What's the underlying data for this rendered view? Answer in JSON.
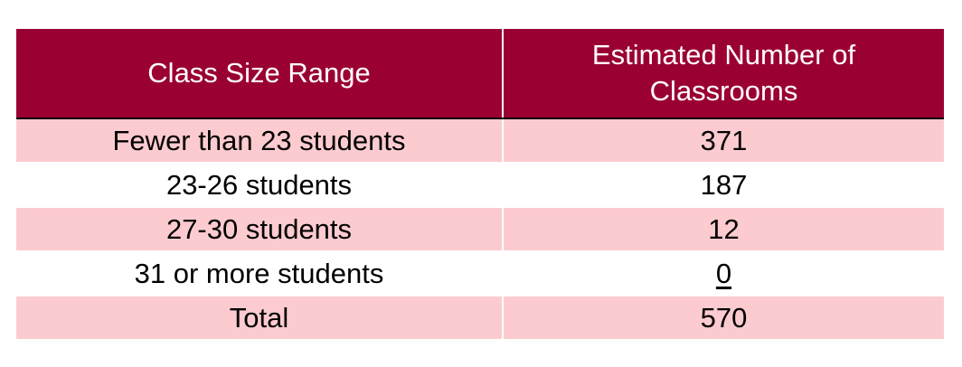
{
  "colors": {
    "header_bg": "#9b0033",
    "header_text": "#ffffff",
    "band_bg": "#fccbcf",
    "plain_bg": "#ffffff"
  },
  "table": {
    "headers": [
      "Class Size Range",
      "Estimated Number of Classrooms"
    ],
    "rows": [
      {
        "range": "Fewer than 23 students",
        "count": "371",
        "banded": true,
        "underline_count": false
      },
      {
        "range": "23-26 students",
        "count": "187",
        "banded": false,
        "underline_count": false
      },
      {
        "range": "27-30 students",
        "count": "12",
        "banded": true,
        "underline_count": false
      },
      {
        "range": "31 or more students",
        "count": "0",
        "banded": false,
        "underline_count": true
      },
      {
        "range": "Total",
        "count": "570",
        "banded": true,
        "underline_count": false
      }
    ]
  }
}
